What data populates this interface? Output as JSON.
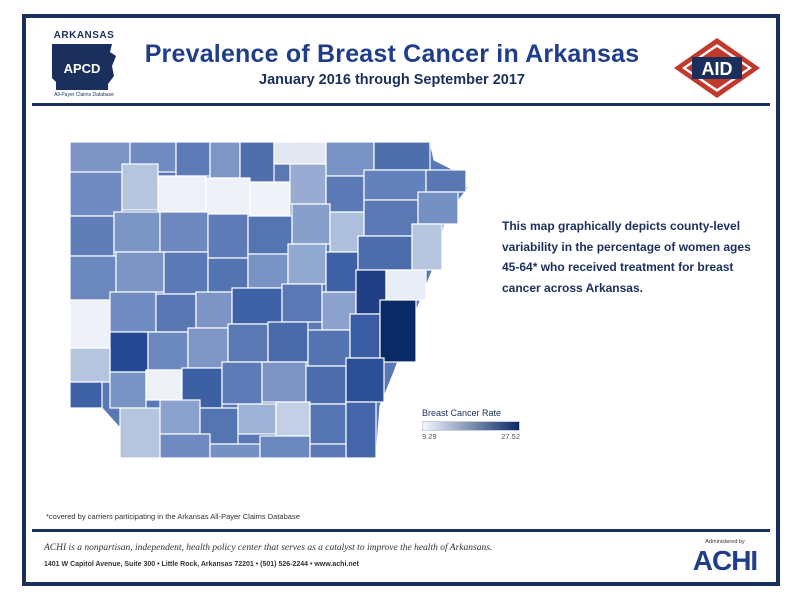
{
  "header": {
    "apcd_top": "ARKANSAS",
    "apcd_mark": "APCD",
    "apcd_sub": "All-Payer Claims Database",
    "title": "Prevalence of Breast Cancer in Arkansas",
    "subtitle": "January 2016 through September 2017",
    "aid_mark": "AID"
  },
  "description": "This map graphically depicts county-level variability in the percentage of women ages 45-64* who received treatment for breast cancer across Arkansas.",
  "legend": {
    "title": "Breast Cancer Rate",
    "min": "9.29",
    "max": "27.52"
  },
  "footnote": "*covered by carriers participating in the Arkansas All-Payer Claims Database",
  "footer": {
    "mission": "ACHI is a nonpartisan, independent, health policy center that serves as a catalyst to improve the health of Arkansans.",
    "address": "1401 W Capitol Avenue, Suite 300 • Little Rock, Arkansas 72201 • (501) 526-2244 • www.achi.net",
    "achi_small": "Administered by",
    "achi_logo": "ACHI"
  },
  "colors": {
    "navy": "#1a2f5c",
    "title_blue": "#1f3d8a",
    "aid_red": "#c0392b",
    "scale_low": "#f4f6fb",
    "scale_high": "#0a2a66"
  }
}
